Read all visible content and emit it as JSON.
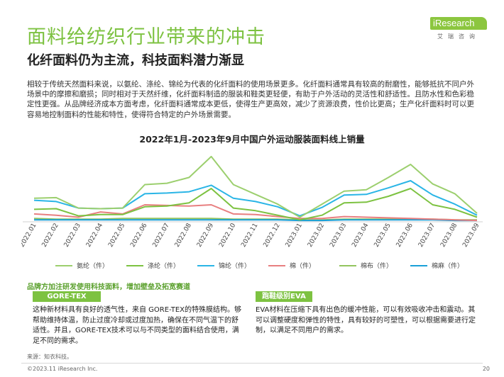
{
  "header": {
    "title": "面料给纺织行业带来的冲击",
    "subtitle": "化纤面料仍为主流，科技面料潜力渐显",
    "logo_text": "iResearch",
    "logo_sub": "艾瑞咨询"
  },
  "intro": "相较于传统天然面料来说，以氨纶、涤纶、锦纶为代表的化纤面料的使用场景更多。化纤面料通常具有较高的耐磨性，能够抵抗不同户外场景中的摩擦和磨损；同时相对于天然纤维，化纤面料制造的服装和鞋类更轻便，有助于户外活动的灵活性和舒适性。且防水性和色彩稳定性更强。从品牌经济成本方面考虑，化纤面料通常成本更低，使得生产更高效，减少了资源浪费，性价比更高；生产化纤面料时可以更容易地控制面料的性能和特性，使得符合特定的户外场景需要。",
  "chart_data": {
    "type": "line",
    "title": "2022年1月-2023年9月中国户外运动服装面料线上销量",
    "xlabel": "",
    "ylabel": "",
    "grid": false,
    "legend_position": "bottom",
    "categories": [
      "2022.01",
      "2022.02",
      "2022.03",
      "2022.04",
      "2022.05",
      "2022.06",
      "2022.07",
      "2022.08",
      "2022.09",
      "2022.10",
      "2022.11",
      "2022.12",
      "2023.01",
      "2023.02",
      "2023.03",
      "2023.04",
      "2023.05",
      "2023.06",
      "2023.07",
      "2023.08",
      "2023.09"
    ],
    "ylim": [
      0,
      100
    ],
    "series": [
      {
        "name": "氨纶（件）",
        "color": "#9ccf6e",
        "values": [
          35,
          36,
          20,
          19,
          20,
          56,
          58,
          67,
          99,
          56,
          41,
          26,
          6,
          26,
          46,
          48,
          67,
          87,
          57,
          42,
          12
        ]
      },
      {
        "name": "涤纶（件）",
        "color": "#7dc241",
        "values": [
          18,
          19,
          8,
          10,
          10,
          22,
          23,
          28,
          50,
          20,
          16,
          9,
          2,
          9,
          28,
          29,
          38,
          50,
          25,
          18,
          6
        ]
      },
      {
        "name": "锦纶（件）",
        "color": "#2ab5e6",
        "values": [
          32,
          30,
          20,
          19,
          20,
          42,
          43,
          45,
          55,
          35,
          30,
          22,
          8,
          21,
          40,
          41,
          51,
          62,
          40,
          26,
          9
        ]
      },
      {
        "name": "棉（件）",
        "color": "#e87f80",
        "values": [
          11,
          9,
          6,
          14,
          11,
          25,
          24,
          23,
          25,
          11,
          10,
          7,
          4,
          4,
          7,
          6,
          5,
          4,
          3,
          2,
          1
        ]
      },
      {
        "name": "棉布（件）",
        "color": "#93c45f",
        "values": [
          4,
          3,
          3,
          3,
          4,
          4,
          4,
          4,
          4,
          3,
          3,
          3,
          2,
          2,
          3,
          3,
          3,
          3,
          3,
          2,
          2
        ]
      },
      {
        "name": "棉麻（件）",
        "color": "#1aa0d8",
        "values": [
          2,
          2,
          2,
          2,
          2,
          2,
          2,
          2,
          2,
          2,
          2,
          2,
          1,
          1,
          2,
          2,
          2,
          2,
          2,
          1,
          1
        ]
      }
    ]
  },
  "callout": "品牌方加注研发使用科技面料，增加壁垒及拓宽赛道",
  "cards": [
    {
      "tag": "GORE-TEX",
      "text": "这种新材料具有良好的透气性，来自 GORE-TEX的特殊膜结构。够帮助维持体温，防止过度冷却或过度加热，确保在不同气温下的舒适性。并且，GORE-TEX技术可以与不同类型的面料结合使用，满足不同的需求。"
    },
    {
      "tag": "跑鞋级别EVA",
      "text": "EVA材料在压缩下具有出色的缓冲性能，可以有效吸收冲击和震动。其可以调整硬度和弹性的特性，具有较好的可塑性，可以根据需要进行定制，以满足不同用户的需求。"
    }
  ],
  "footer": {
    "source": "来源：知衣科技。",
    "copyright": "©2023.11 iResearch Inc.",
    "page": "20"
  }
}
